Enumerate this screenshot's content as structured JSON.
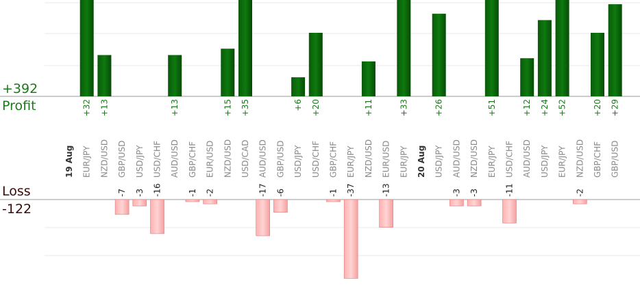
{
  "summary": {
    "profit_total": "+392",
    "profit_label": "Profit",
    "loss_label": "Loss",
    "loss_total": "-122"
  },
  "colors": {
    "profit_bar": "#0b6b0b",
    "profit_text": "#1a7a1a",
    "loss_bar": "#ffc4c4",
    "loss_bar_edge": "#e07a7a",
    "loss_text": "#3a0a0a",
    "grid": "#e8e8e8",
    "axis": "#999999",
    "category_text": "#8a8a8a",
    "date_text": "#333333"
  },
  "chart_data": {
    "type": "bar",
    "categories": [
      "19 Aug",
      "EUR/JPY",
      "NZD/USD",
      "GBP/USD",
      "USD/JPY",
      "USD/CHF",
      "AUD/USD",
      "GBP/CHF",
      "EUR/USD",
      "NZD/USD",
      "USD/CAD",
      "AUD/USD",
      "GBP/USD",
      "USD/JPY",
      "USD/CHF",
      "GBP/CHF",
      "EUR/JPY",
      "NZD/USD",
      "EUR/USD",
      "EUR/JPY",
      "20 Aug",
      "USD/JPY",
      "AUD/USD",
      "NZD/USD",
      "EUR/JPY",
      "USD/CHF",
      "AUD/USD",
      "USD/JPY",
      "EUR/JPY",
      "NZD/USD",
      "GBP/CHF",
      "GBP/USD"
    ],
    "date_markers": [
      "19 Aug",
      "20 Aug"
    ],
    "series": [
      {
        "values": [
          null,
          32,
          13,
          null,
          null,
          null,
          13,
          null,
          null,
          15,
          35,
          null,
          null,
          6,
          20,
          null,
          null,
          11,
          null,
          33,
          null,
          26,
          null,
          null,
          51,
          null,
          12,
          24,
          52,
          null,
          20,
          29
        ],
        "labels": [
          "",
          "+32",
          "+13",
          "",
          "",
          "",
          "+13",
          "",
          "",
          "+15",
          "+35",
          "",
          "",
          "+6",
          "+20",
          "",
          "",
          "+11",
          "",
          "+33",
          "",
          "+26",
          "",
          "",
          "+51",
          "",
          "+12",
          "+24",
          "+52",
          "",
          "+20",
          "+29"
        ]
      },
      {
        "values": [
          null,
          null,
          null,
          -7,
          -3,
          -16,
          null,
          -1,
          -2,
          null,
          null,
          -17,
          -6,
          null,
          null,
          -1,
          -37,
          null,
          -13,
          null,
          null,
          null,
          -3,
          -3,
          null,
          -11,
          null,
          null,
          null,
          -2,
          null,
          null
        ],
        "labels": [
          "",
          "",
          "",
          "-7",
          "-3",
          "-16",
          "",
          "-1",
          "-2",
          "",
          "",
          "-17",
          "-6",
          "",
          "",
          "-1",
          "-37",
          "",
          "-13",
          "",
          "",
          "",
          "-3",
          "-3",
          "",
          "-11",
          "",
          "",
          "",
          "-2",
          "",
          ""
        ]
      }
    ],
    "ylim_profit": [
      0,
      30
    ],
    "ylim_loss": [
      -30,
      0
    ],
    "grid": true,
    "legend": false
  }
}
